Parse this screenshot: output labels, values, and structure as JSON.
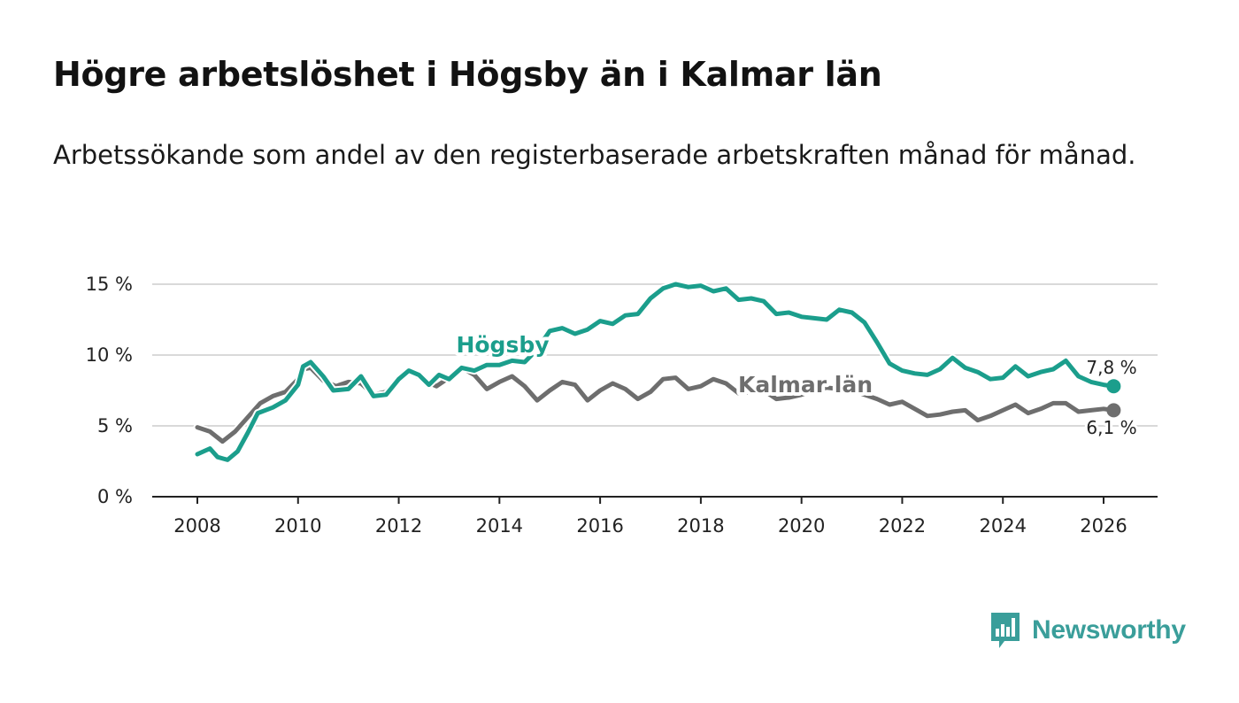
{
  "title": "Högre arbetslöshet i Högsby än i Kalmar län",
  "subtitle": "Arbetssökande som andel av den registerbaserade arbetskraften månad för månad.",
  "brand": {
    "name": "Newsworthy",
    "color": "#3a9e9a"
  },
  "chart_data": {
    "type": "line",
    "title": "Högre arbetslöshet i Högsby än i Kalmar län",
    "xlabel": "",
    "ylabel": "",
    "xlim": [
      2007.1,
      2027.0
    ],
    "ylim": [
      0,
      15.5
    ],
    "grid": true,
    "y_ticks": [
      0,
      5,
      10,
      15
    ],
    "y_tick_labels": [
      "0 %",
      "5 %",
      "10 %",
      "15 %"
    ],
    "x_ticks": [
      2008,
      2010,
      2012,
      2014,
      2016,
      2018,
      2020,
      2022,
      2024,
      2026
    ],
    "x_tick_labels": [
      "2008",
      "2010",
      "2012",
      "2014",
      "2016",
      "2018",
      "2020",
      "2022",
      "2024",
      "2026"
    ],
    "series": [
      {
        "name": "Kalmar län",
        "label": "Kalmar län",
        "color": "#6e6e6e",
        "end_label": "6,1 %",
        "points": [
          [
            2008.0,
            4.9
          ],
          [
            2008.25,
            4.6
          ],
          [
            2008.5,
            3.9
          ],
          [
            2008.75,
            4.6
          ],
          [
            2009.0,
            5.6
          ],
          [
            2009.25,
            6.6
          ],
          [
            2009.5,
            7.1
          ],
          [
            2009.75,
            7.4
          ],
          [
            2010.0,
            8.3
          ],
          [
            2010.1,
            9.0
          ],
          [
            2010.25,
            9.1
          ],
          [
            2010.5,
            8.2
          ],
          [
            2010.75,
            7.8
          ],
          [
            2011.0,
            8.1
          ],
          [
            2011.25,
            8.0
          ],
          [
            2011.5,
            7.2
          ],
          [
            2011.75,
            7.4
          ],
          [
            2012.0,
            8.4
          ],
          [
            2012.25,
            8.8
          ],
          [
            2012.5,
            8.2
          ],
          [
            2012.75,
            7.8
          ],
          [
            2013.0,
            8.4
          ],
          [
            2013.25,
            9.1
          ],
          [
            2013.5,
            8.6
          ],
          [
            2013.75,
            7.6
          ],
          [
            2014.0,
            8.1
          ],
          [
            2014.25,
            8.5
          ],
          [
            2014.5,
            7.8
          ],
          [
            2014.75,
            6.8
          ],
          [
            2015.0,
            7.5
          ],
          [
            2015.25,
            8.1
          ],
          [
            2015.5,
            7.9
          ],
          [
            2015.75,
            6.8
          ],
          [
            2016.0,
            7.5
          ],
          [
            2016.25,
            8.0
          ],
          [
            2016.5,
            7.6
          ],
          [
            2016.75,
            6.9
          ],
          [
            2017.0,
            7.4
          ],
          [
            2017.25,
            8.3
          ],
          [
            2017.5,
            8.4
          ],
          [
            2017.75,
            7.6
          ],
          [
            2018.0,
            7.8
          ],
          [
            2018.25,
            8.3
          ],
          [
            2018.5,
            8.0
          ],
          [
            2018.75,
            7.3
          ],
          [
            2019.0,
            7.4
          ],
          [
            2019.25,
            7.5
          ],
          [
            2019.5,
            6.9
          ],
          [
            2019.75,
            7.0
          ],
          [
            2020.0,
            7.2
          ],
          [
            2020.25,
            7.5
          ],
          [
            2020.5,
            7.7
          ],
          [
            2020.75,
            7.6
          ],
          [
            2021.0,
            7.5
          ],
          [
            2021.25,
            7.2
          ],
          [
            2021.5,
            6.9
          ],
          [
            2021.75,
            6.5
          ],
          [
            2022.0,
            6.7
          ],
          [
            2022.25,
            6.2
          ],
          [
            2022.5,
            5.7
          ],
          [
            2022.75,
            5.8
          ],
          [
            2023.0,
            6.0
          ],
          [
            2023.25,
            6.1
          ],
          [
            2023.5,
            5.4
          ],
          [
            2023.75,
            5.7
          ],
          [
            2024.0,
            6.1
          ],
          [
            2024.25,
            6.5
          ],
          [
            2024.5,
            5.9
          ],
          [
            2024.75,
            6.2
          ],
          [
            2025.0,
            6.6
          ],
          [
            2025.25,
            6.6
          ],
          [
            2025.5,
            6.0
          ],
          [
            2025.75,
            6.1
          ],
          [
            2026.0,
            6.2
          ],
          [
            2026.2,
            6.1
          ]
        ]
      },
      {
        "name": "Högsby",
        "label": "Högsby",
        "color": "#1b9e8c",
        "end_label": "7,8 %",
        "points": [
          [
            2008.0,
            3.0
          ],
          [
            2008.25,
            3.4
          ],
          [
            2008.4,
            2.8
          ],
          [
            2008.6,
            2.6
          ],
          [
            2008.8,
            3.2
          ],
          [
            2009.0,
            4.5
          ],
          [
            2009.2,
            5.9
          ],
          [
            2009.5,
            6.3
          ],
          [
            2009.75,
            6.8
          ],
          [
            2010.0,
            7.9
          ],
          [
            2010.1,
            9.2
          ],
          [
            2010.25,
            9.5
          ],
          [
            2010.5,
            8.5
          ],
          [
            2010.7,
            7.5
          ],
          [
            2011.0,
            7.6
          ],
          [
            2011.25,
            8.5
          ],
          [
            2011.5,
            7.1
          ],
          [
            2011.75,
            7.2
          ],
          [
            2012.0,
            8.3
          ],
          [
            2012.2,
            8.9
          ],
          [
            2012.4,
            8.6
          ],
          [
            2012.6,
            7.9
          ],
          [
            2012.8,
            8.6
          ],
          [
            2013.0,
            8.3
          ],
          [
            2013.25,
            9.1
          ],
          [
            2013.5,
            8.9
          ],
          [
            2013.75,
            9.3
          ],
          [
            2014.0,
            9.3
          ],
          [
            2014.25,
            9.6
          ],
          [
            2014.5,
            9.5
          ],
          [
            2014.75,
            10.4
          ],
          [
            2015.0,
            11.7
          ],
          [
            2015.25,
            11.9
          ],
          [
            2015.5,
            11.5
          ],
          [
            2015.75,
            11.8
          ],
          [
            2016.0,
            12.4
          ],
          [
            2016.25,
            12.2
          ],
          [
            2016.5,
            12.8
          ],
          [
            2016.75,
            12.9
          ],
          [
            2017.0,
            14.0
          ],
          [
            2017.25,
            14.7
          ],
          [
            2017.5,
            15.0
          ],
          [
            2017.75,
            14.8
          ],
          [
            2018.0,
            14.9
          ],
          [
            2018.25,
            14.5
          ],
          [
            2018.5,
            14.7
          ],
          [
            2018.75,
            13.9
          ],
          [
            2019.0,
            14.0
          ],
          [
            2019.25,
            13.8
          ],
          [
            2019.5,
            12.9
          ],
          [
            2019.75,
            13.0
          ],
          [
            2020.0,
            12.7
          ],
          [
            2020.25,
            12.6
          ],
          [
            2020.5,
            12.5
          ],
          [
            2020.75,
            13.2
          ],
          [
            2021.0,
            13.0
          ],
          [
            2021.25,
            12.3
          ],
          [
            2021.5,
            10.9
          ],
          [
            2021.75,
            9.4
          ],
          [
            2022.0,
            8.9
          ],
          [
            2022.25,
            8.7
          ],
          [
            2022.5,
            8.6
          ],
          [
            2022.75,
            9.0
          ],
          [
            2023.0,
            9.8
          ],
          [
            2023.25,
            9.1
          ],
          [
            2023.5,
            8.8
          ],
          [
            2023.75,
            8.3
          ],
          [
            2024.0,
            8.4
          ],
          [
            2024.25,
            9.2
          ],
          [
            2024.5,
            8.5
          ],
          [
            2024.75,
            8.8
          ],
          [
            2025.0,
            9.0
          ],
          [
            2025.25,
            9.6
          ],
          [
            2025.5,
            8.5
          ],
          [
            2025.75,
            8.1
          ],
          [
            2026.0,
            7.9
          ],
          [
            2026.2,
            7.8
          ]
        ]
      }
    ]
  }
}
